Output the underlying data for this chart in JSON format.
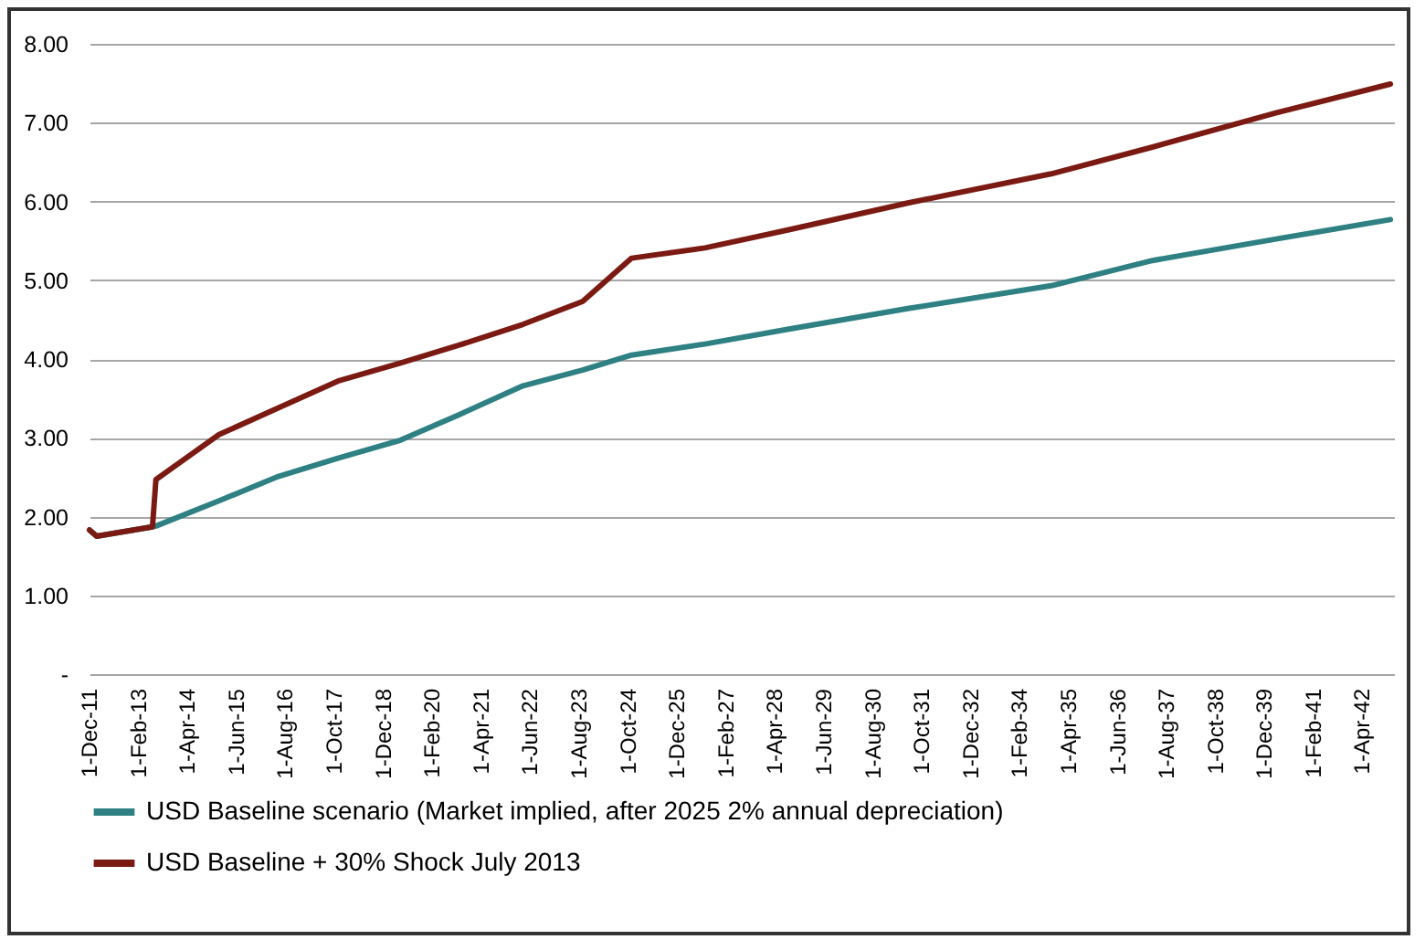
{
  "chart_data": {
    "type": "line",
    "x": [
      "2011-12-01",
      "2012-02-01",
      "2013-06-01",
      "2013-07-01",
      "2015-01-01",
      "2016-06-01",
      "2017-11-01",
      "2019-05-01",
      "2020-10-01",
      "2022-04-01",
      "2023-09-01",
      "2024-11-01",
      "2026-08-01",
      "2028-08-01",
      "2031-06-01",
      "2034-11-01",
      "2037-04-01",
      "2040-03-01",
      "2042-12-01"
    ],
    "series": [
      {
        "name": "USD Baseline scenario (Market implied, after 2025 2% annual depreciation)",
        "color": "#2e8083",
        "values": [
          1.83,
          1.75,
          1.87,
          1.88,
          2.2,
          2.51,
          2.74,
          2.97,
          3.3,
          3.66,
          3.86,
          4.05,
          4.19,
          4.38,
          4.64,
          4.93,
          5.25,
          5.52,
          5.77
        ]
      },
      {
        "name": "USD Baseline + 30% Shock July 2013",
        "color": "#7b1a12",
        "values": [
          1.83,
          1.75,
          1.87,
          2.47,
          3.04,
          3.38,
          3.72,
          3.95,
          4.18,
          4.44,
          4.73,
          5.28,
          5.41,
          5.64,
          5.98,
          6.35,
          6.69,
          7.12,
          7.49
        ]
      }
    ],
    "xlim": [
      "2011-12-01",
      "2043-01-01"
    ],
    "xticks": [
      {
        "value": "2011-12-01",
        "label": "1-Dec-11"
      },
      {
        "value": "2013-02-01",
        "label": "1-Feb-13"
      },
      {
        "value": "2014-04-01",
        "label": "1-Apr-14"
      },
      {
        "value": "2015-06-01",
        "label": "1-Jun-15"
      },
      {
        "value": "2016-08-01",
        "label": "1-Aug-16"
      },
      {
        "value": "2017-10-01",
        "label": "1-Oct-17"
      },
      {
        "value": "2018-12-01",
        "label": "1-Dec-18"
      },
      {
        "value": "2020-02-01",
        "label": "1-Feb-20"
      },
      {
        "value": "2021-04-01",
        "label": "1-Apr-21"
      },
      {
        "value": "2022-06-01",
        "label": "1-Jun-22"
      },
      {
        "value": "2023-08-01",
        "label": "1-Aug-23"
      },
      {
        "value": "2024-10-01",
        "label": "1-Oct-24"
      },
      {
        "value": "2025-12-01",
        "label": "1-Dec-25"
      },
      {
        "value": "2027-02-01",
        "label": "1-Feb-27"
      },
      {
        "value": "2028-04-01",
        "label": "1-Apr-28"
      },
      {
        "value": "2029-06-01",
        "label": "1-Jun-29"
      },
      {
        "value": "2030-08-01",
        "label": "1-Aug-30"
      },
      {
        "value": "2031-10-01",
        "label": "1-Oct-31"
      },
      {
        "value": "2032-12-01",
        "label": "1-Dec-32"
      },
      {
        "value": "2034-02-01",
        "label": "1-Feb-34"
      },
      {
        "value": "2035-04-01",
        "label": "1-Apr-35"
      },
      {
        "value": "2036-06-01",
        "label": "1-Jun-36"
      },
      {
        "value": "2037-08-01",
        "label": "1-Aug-37"
      },
      {
        "value": "2038-10-01",
        "label": "1-Oct-38"
      },
      {
        "value": "2039-12-01",
        "label": "1-Dec-39"
      },
      {
        "value": "2041-02-01",
        "label": "1-Feb-41"
      },
      {
        "value": "2042-04-01",
        "label": "1-Apr-42"
      }
    ],
    "ylim": [
      0,
      8
    ],
    "yticks": [
      {
        "value": 0,
        "label": "-"
      },
      {
        "value": 1,
        "label": "1.00"
      },
      {
        "value": 2,
        "label": "2.00"
      },
      {
        "value": 3,
        "label": "3.00"
      },
      {
        "value": 4,
        "label": "4.00"
      },
      {
        "value": 5,
        "label": "5.00"
      },
      {
        "value": 6,
        "label": "6.00"
      },
      {
        "value": 7,
        "label": "7.00"
      },
      {
        "value": 8,
        "label": "8.00"
      }
    ],
    "grid": "y",
    "legend": "bottom",
    "line_style": "solid"
  }
}
